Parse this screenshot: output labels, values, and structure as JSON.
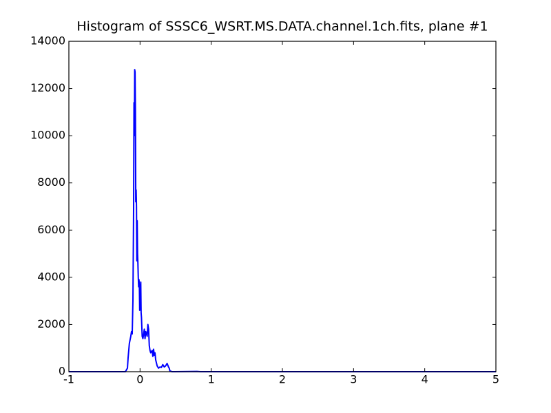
{
  "chart_data": {
    "type": "line",
    "title": "Histogram of SSSC6_WSRT.MS.DATA.channel.1ch.fits, plane #1",
    "x": [
      -1,
      -0.206,
      -0.177,
      -0.168,
      -0.15,
      -0.13,
      -0.12,
      -0.11,
      -0.1,
      -0.09,
      -0.085,
      -0.08,
      -0.075,
      -0.07,
      -0.065,
      -0.06,
      -0.055,
      -0.05,
      -0.045,
      -0.04,
      -0.035,
      -0.03,
      -0.025,
      -0.02,
      -0.015,
      -0.01,
      -0.005,
      0,
      0.005,
      0.01,
      0.015,
      0.02,
      0.03,
      0.04,
      0.05,
      0.06,
      0.07,
      0.08,
      0.09,
      0.1,
      0.11,
      0.12,
      0.13,
      0.14,
      0.15,
      0.17,
      0.18,
      0.19,
      0.2,
      0.21,
      0.22,
      0.24,
      0.26,
      0.28,
      0.3,
      0.32,
      0.34,
      0.36,
      0.38,
      0.4,
      0.41,
      0.42,
      0.45,
      0.8,
      0.85,
      5
    ],
    "values": [
      0,
      0,
      150,
      580,
      1200,
      1500,
      1700,
      1600,
      3000,
      7000,
      11400,
      10000,
      12800,
      12700,
      11000,
      7200,
      7700,
      7000,
      4700,
      6400,
      5000,
      4600,
      4000,
      3600,
      3900,
      3700,
      2600,
      3500,
      3000,
      3800,
      2500,
      2300,
      1500,
      1400,
      1600,
      1800,
      1400,
      1700,
      1600,
      1500,
      2000,
      1800,
      1100,
      900,
      800,
      900,
      650,
      950,
      700,
      800,
      500,
      250,
      150,
      200,
      180,
      300,
      200,
      250,
      350,
      200,
      150,
      30,
      0,
      10,
      0,
      0
    ],
    "color": "#0000ff",
    "xlim": [
      -1,
      5
    ],
    "xticks": [
      -1,
      0,
      1,
      2,
      3,
      4,
      5
    ],
    "ylim": [
      0,
      14000
    ],
    "yticks": [
      0,
      2000,
      4000,
      6000,
      8000,
      10000,
      12000,
      14000
    ]
  }
}
